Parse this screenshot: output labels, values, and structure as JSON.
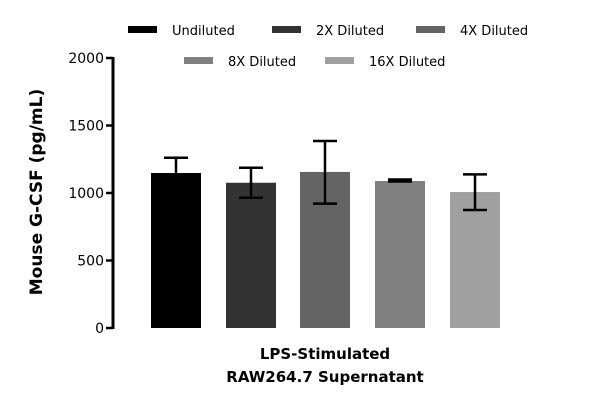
{
  "chart_data": {
    "type": "bar",
    "title": "",
    "xlabel": "LPS-Stimulated RAW264.7 Supernatant",
    "xlabel_lines": [
      "LPS-Stimulated",
      "RAW264.7 Supernatant"
    ],
    "ylabel": "Mouse G-CSF (pg/mL)",
    "ylim": [
      0,
      2000
    ],
    "yticks": [
      "0",
      "500",
      "1000",
      "1500",
      "2000"
    ],
    "legend_position": "top",
    "series": [
      {
        "name": "Undiluted",
        "value": 1148,
        "err_low": 1035,
        "err_high": 1261,
        "color": "#000000"
      },
      {
        "name": "2X Diluted",
        "value": 1076,
        "err_low": 965,
        "err_high": 1187,
        "color": "#333333"
      },
      {
        "name": "4X Diluted",
        "value": 1156,
        "err_low": 921,
        "err_high": 1385,
        "color": "#646464"
      },
      {
        "name": "8X Diluted",
        "value": 1089,
        "err_low": 1085,
        "err_high": 1100,
        "color": "#808080"
      },
      {
        "name": "16X Diluted",
        "value": 1007,
        "err_low": 874,
        "err_high": 1138,
        "color": "#a0a0a0"
      }
    ]
  }
}
